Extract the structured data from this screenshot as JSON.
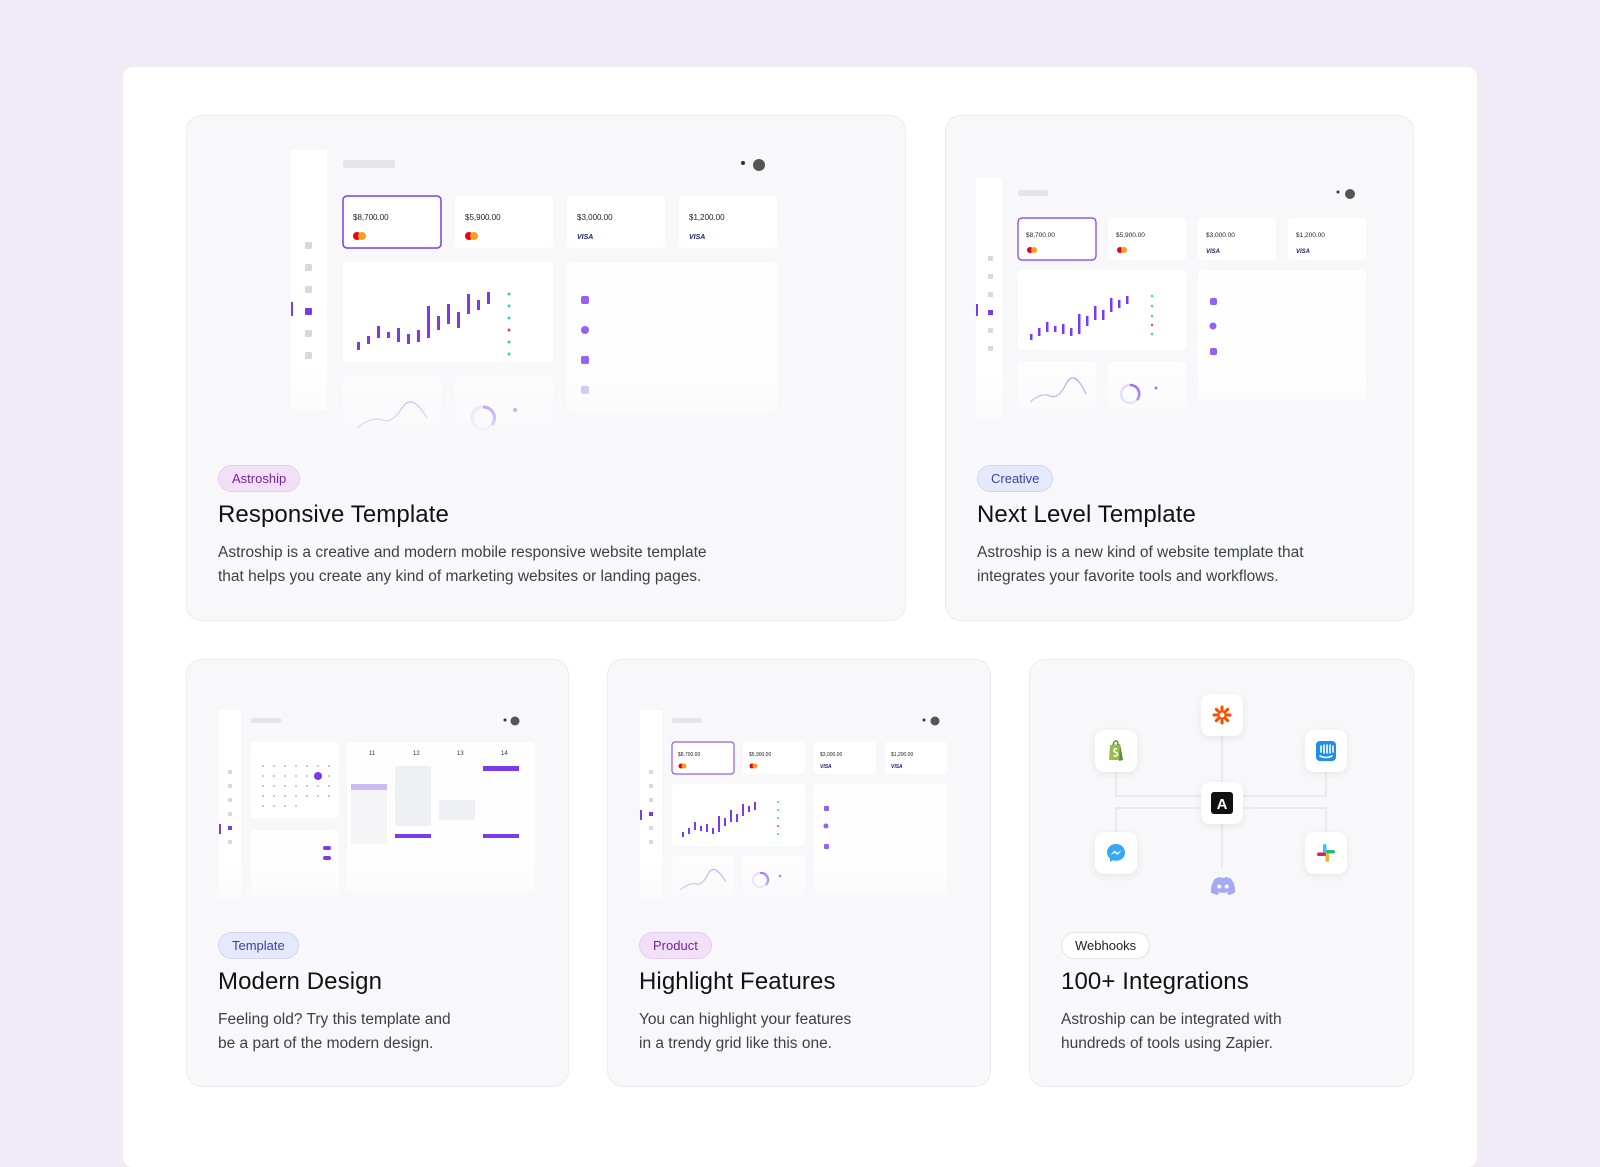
{
  "cards": [
    {
      "badge": "Astroship",
      "title": "Responsive Template",
      "desc_1": "Astroship is a creative and modern mobile responsive website template",
      "desc_2": "that helps you create any kind of marketing websites or landing pages."
    },
    {
      "badge": "Creative",
      "title": "Next Level Template",
      "desc_1": "Astroship is a new kind of website template that",
      "desc_2": "integrates your favorite tools and workflows."
    },
    {
      "badge": "Template",
      "title": "Modern Design",
      "desc_1": "Feeling old? Try this template and",
      "desc_2": "be a part of the modern design."
    },
    {
      "badge": "Product",
      "title": "Highlight Features",
      "desc_1": "You can highlight your features",
      "desc_2": "in a trendy grid like this one."
    },
    {
      "badge": "Webhooks",
      "title": "100+ Integrations",
      "desc_1": "Astroship can be integrated with",
      "desc_2": "hundreds of tools using Zapier."
    }
  ],
  "dashboard": {
    "amounts": [
      "$8,700.00",
      "$5,900.00",
      "$3,000.00",
      "$1,200.00"
    ],
    "card_brands": [
      "mastercard",
      "mastercard",
      "visa",
      "visa"
    ],
    "visa_label": "VISA",
    "calendar_days": [
      "11",
      "12",
      "13",
      "14"
    ]
  },
  "integrations": {
    "center_letter": "A",
    "icons": [
      "zapier-icon",
      "shopify-icon",
      "intercom-icon",
      "messenger-icon",
      "slack-icon",
      "discord-icon"
    ]
  },
  "colors": {
    "accent": "#7c3aed",
    "background": "#f1eaf7",
    "card": "#f8f8fa"
  }
}
